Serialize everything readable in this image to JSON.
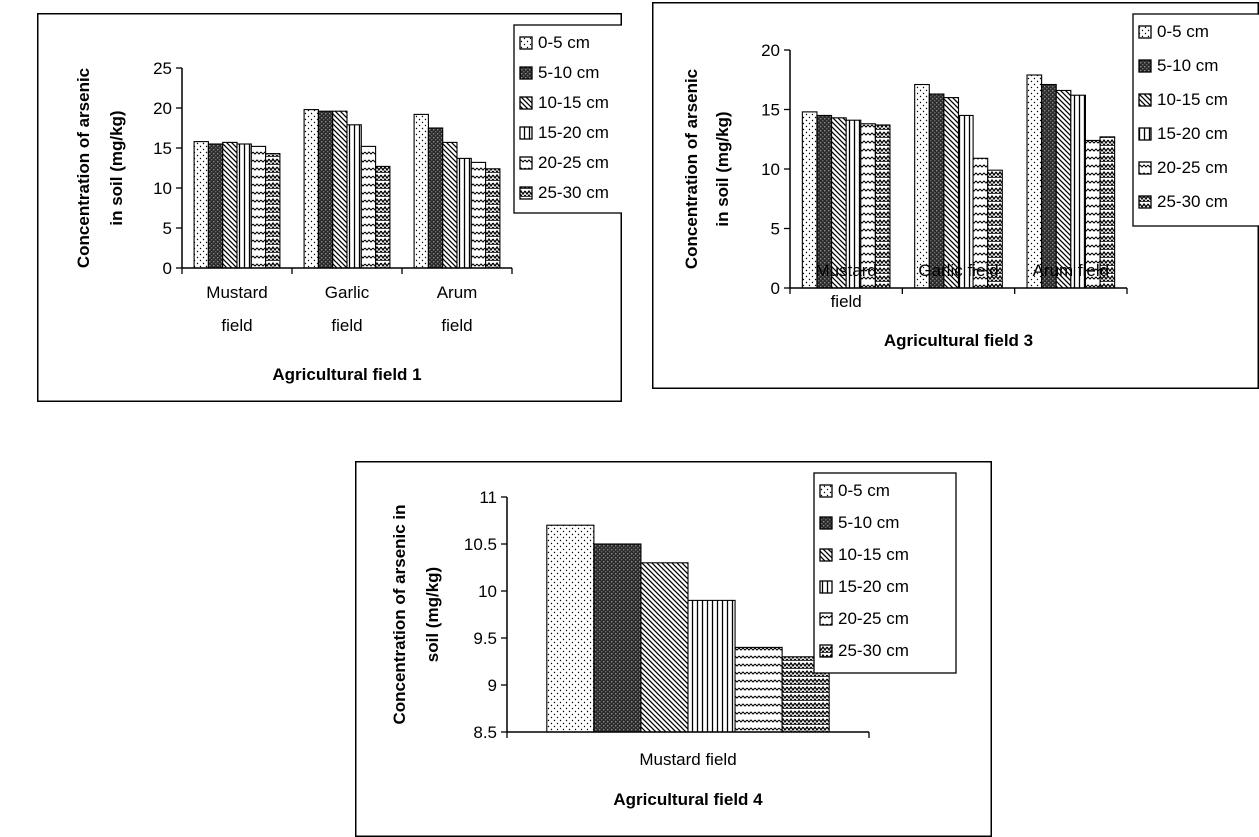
{
  "legend_labels": [
    "0-5 cm",
    "5-10 cm",
    "10-15 cm",
    "15-20 cm",
    "20-25 cm",
    "25-30 cm"
  ],
  "chart_data": [
    {
      "type": "bar",
      "xlabel": "Agricultural field 1",
      "ylabel": [
        "Concentration of arsenic",
        "in soil (mg/kg)"
      ],
      "categories": [
        [
          "Mustard",
          "field"
        ],
        [
          "Garlic",
          "field"
        ],
        [
          "Arum",
          "field"
        ]
      ],
      "ylim": [
        0,
        25
      ],
      "yticks": [
        0,
        5,
        10,
        15,
        20,
        25
      ],
      "grid": false,
      "legend_position": "right",
      "series": [
        {
          "name": "0-5 cm",
          "values": [
            15.8,
            19.8,
            19.2
          ]
        },
        {
          "name": "5-10 cm",
          "values": [
            15.5,
            19.6,
            17.5
          ]
        },
        {
          "name": "10-15 cm",
          "values": [
            15.7,
            19.6,
            15.7
          ]
        },
        {
          "name": "15-20 cm",
          "values": [
            15.5,
            17.9,
            13.7
          ]
        },
        {
          "name": "20-25 cm",
          "values": [
            15.2,
            15.2,
            13.2
          ]
        },
        {
          "name": "25-30 cm",
          "values": [
            14.3,
            12.7,
            12.4
          ]
        }
      ]
    },
    {
      "type": "bar",
      "xlabel": "Agricultural field 3",
      "ylabel": [
        "Concentration of arsenic",
        "in soil (mg/kg)"
      ],
      "categories": [
        [
          "Mustard",
          "field"
        ],
        [
          "Garlic field"
        ],
        [
          "Arum field"
        ]
      ],
      "ylim": [
        0,
        20
      ],
      "yticks": [
        0,
        5,
        10,
        15,
        20
      ],
      "grid": false,
      "legend_position": "right",
      "series": [
        {
          "name": "0-5 cm",
          "values": [
            14.8,
            17.1,
            17.9
          ]
        },
        {
          "name": "5-10 cm",
          "values": [
            14.5,
            16.3,
            17.1
          ]
        },
        {
          "name": "10-15 cm",
          "values": [
            14.3,
            16.0,
            16.6
          ]
        },
        {
          "name": "15-20 cm",
          "values": [
            14.1,
            14.5,
            16.2
          ]
        },
        {
          "name": "20-25 cm",
          "values": [
            13.8,
            10.9,
            12.4
          ]
        },
        {
          "name": "25-30 cm",
          "values": [
            13.7,
            9.9,
            12.7
          ]
        }
      ]
    },
    {
      "type": "bar",
      "xlabel": "Agricultural field 4",
      "ylabel": [
        "Concentration of arsenic in",
        "soil (mg/kg)"
      ],
      "categories": [
        [
          "Mustard field"
        ]
      ],
      "ylim": [
        8.5,
        11
      ],
      "yticks": [
        8.5,
        9,
        9.5,
        10,
        10.5,
        11
      ],
      "grid": false,
      "legend_position": "top-right",
      "series": [
        {
          "name": "0-5 cm",
          "values": [
            10.7
          ]
        },
        {
          "name": "5-10 cm",
          "values": [
            10.5
          ]
        },
        {
          "name": "10-15 cm",
          "values": [
            10.3
          ]
        },
        {
          "name": "15-20 cm",
          "values": [
            9.9
          ]
        },
        {
          "name": "20-25 cm",
          "values": [
            9.4
          ]
        },
        {
          "name": "25-30 cm",
          "values": [
            9.3
          ]
        }
      ]
    }
  ]
}
